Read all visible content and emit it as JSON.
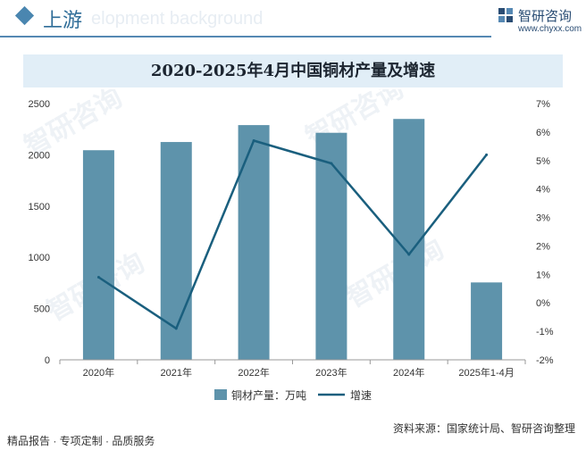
{
  "header": {
    "section_title": "上游",
    "watermark_text": "elopment background",
    "logo_name": "智研咨询",
    "logo_url": "www.chyxx.com"
  },
  "chart_data": {
    "type": "bar",
    "title": "2020-2025年4月中国铜材产量及增速",
    "categories": [
      "2020年",
      "2021年",
      "2022年",
      "2023年",
      "2024年",
      "2025年1-4月"
    ],
    "series": [
      {
        "name": "铜材产量：万吨",
        "type": "bar",
        "axis": "left",
        "color": "#5e93ab",
        "values": [
          2045,
          2125,
          2290,
          2215,
          2350,
          755
        ]
      },
      {
        "name": "增速",
        "type": "line",
        "axis": "right",
        "color": "#1a5f7e",
        "values": [
          0.9,
          -0.9,
          5.7,
          4.9,
          1.7,
          5.2
        ]
      }
    ],
    "y_left": {
      "min": 0,
      "max": 2500,
      "ticks": [
        "0",
        "500",
        "1000",
        "1500",
        "2000",
        "2500"
      ]
    },
    "y_right": {
      "min": -2,
      "max": 7,
      "ticks": [
        "-2%",
        "-1%",
        "0%",
        "1%",
        "2%",
        "3%",
        "4%",
        "5%",
        "6%",
        "7%"
      ]
    },
    "grid": false,
    "legend": "bottom-center"
  },
  "watermarks": [
    "智研咨询",
    "智研咨询",
    "智研咨询",
    "智研咨询"
  ],
  "footer": {
    "left": "精品报告 · 专项定制 · 品质服务",
    "right": "资料来源：国家统计局、智研咨询整理"
  }
}
